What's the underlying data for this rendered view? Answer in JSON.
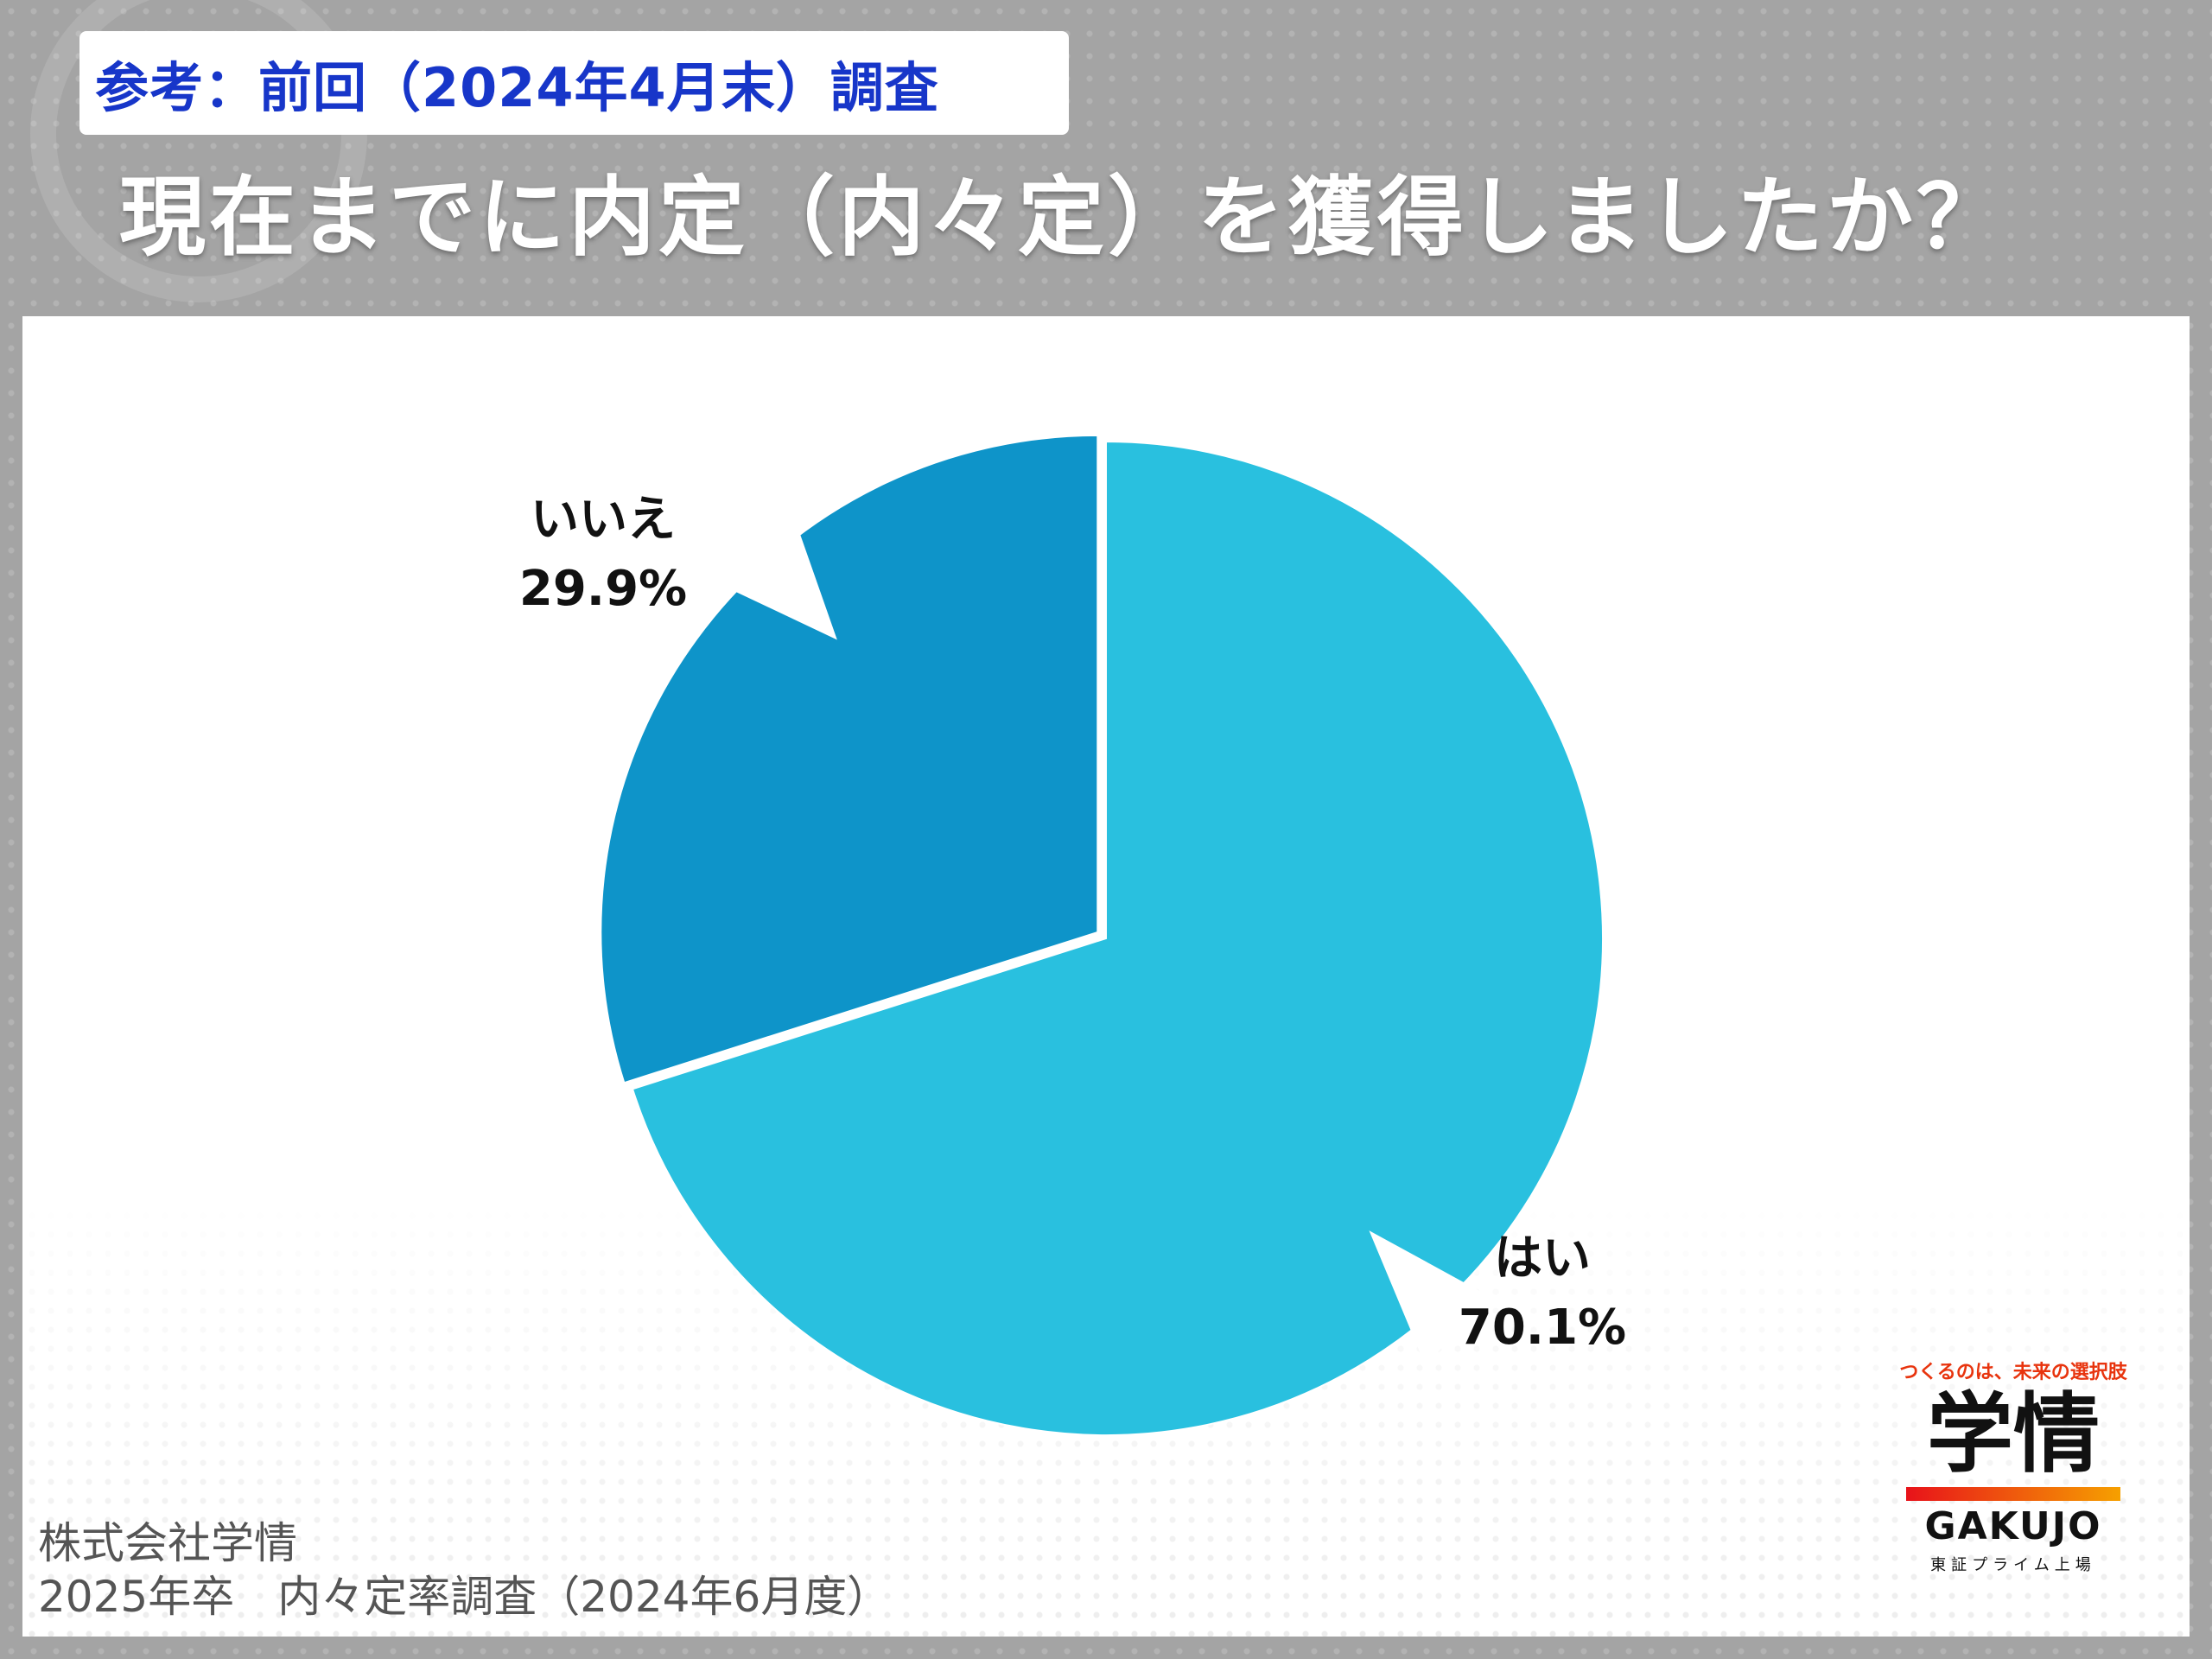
{
  "header": {
    "note": "参考：前回（2024年4月末）調査",
    "title": "現在までに内定（内々定）を獲得しましたか？"
  },
  "chart_data": {
    "type": "pie",
    "title": "",
    "slices": [
      {
        "name": "はい",
        "value": 70.1,
        "label": "70.1%",
        "color": "#29c0df"
      },
      {
        "name": "いいえ",
        "value": 29.9,
        "label": "29.9%",
        "color": "#0e94c9",
        "exploded": true
      }
    ]
  },
  "source": {
    "line1": "株式会社学情",
    "line2": "2025年卒　内々定率調査（2024年6月度）"
  },
  "logo": {
    "tagline": "つくるのは、未来の選択肢",
    "mark": "学情",
    "name": "GAKUJO",
    "sub": "東証プライム上場"
  }
}
